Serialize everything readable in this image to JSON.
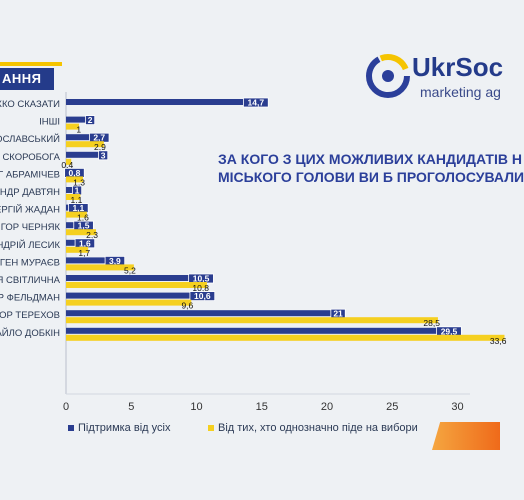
{
  "header": {
    "tab_label": "АННЯ"
  },
  "logo": {
    "name": "UkrSoc",
    "sub": "marketing ag"
  },
  "question": {
    "line1": "ЗА КОГО З ЦИХ МОЖЛИВИХ КАНДИДАТІВ Н",
    "line2": "МІСЬКОГО ГОЛОВИ  ВИ Б ПРОГОЛОСУВАЛИ"
  },
  "legend": {
    "series1": "Підтримка від усіх",
    "series2": "Від тих, хто однозначно піде на вибори"
  },
  "colors": {
    "series1": "#2a3d8f",
    "series2": "#f5d020"
  },
  "chart_data": {
    "type": "bar",
    "orientation": "horizontal",
    "categories": [
      "ЖКО СКАЗАТИ",
      "ІНШІ",
      "РОСЛАВСЬКИЙ",
      "СКОРОБОГА",
      "ЕГ АБРАМІЧЕВ",
      "АНДР ДАВТЯН",
      "ЕРГІЙ ЖАДАН",
      "ІГОР ЧЕРНЯК",
      "НДРІЙ ЛЕСИК",
      "ВГЕН МУРАЄВ",
      "Я СВІТЛИЧНА",
      "Р ФЕЛЬДМАН",
      "ГОР ТЕРЕХОВ",
      "АЙЛО ДОБКІН"
    ],
    "series": [
      {
        "name": "Підтримка від усіх",
        "values": [
          14.7,
          2,
          2.7,
          3,
          0.8,
          1,
          1.1,
          1.5,
          1.6,
          3.9,
          10.5,
          10.6,
          21,
          29.5
        ],
        "labels": [
          "14,7",
          "2",
          "2,7",
          "3",
          "0,8",
          "1",
          "1,1",
          "1,5",
          "1,6",
          "3,9",
          "10,5",
          "10,6",
          "21",
          "29,5"
        ]
      },
      {
        "name": "Від тих, хто однозначно піде на вибори",
        "values": [
          null,
          1,
          2.9,
          0.4,
          1.3,
          1.1,
          1.6,
          2.3,
          1.7,
          5.2,
          10.8,
          9.6,
          28.5,
          33.6
        ],
        "labels": [
          "",
          "1",
          "2,9",
          "0,4",
          "1,3",
          "1,1",
          "1,6",
          "2,3",
          "1,7",
          "5,2",
          "10,8",
          "9,6",
          "28,5",
          "33,6"
        ]
      }
    ],
    "xlim": [
      0,
      33
    ],
    "xticks": [
      0,
      5,
      10,
      15,
      20,
      25,
      30
    ],
    "grid": false,
    "legend_position": "bottom"
  }
}
